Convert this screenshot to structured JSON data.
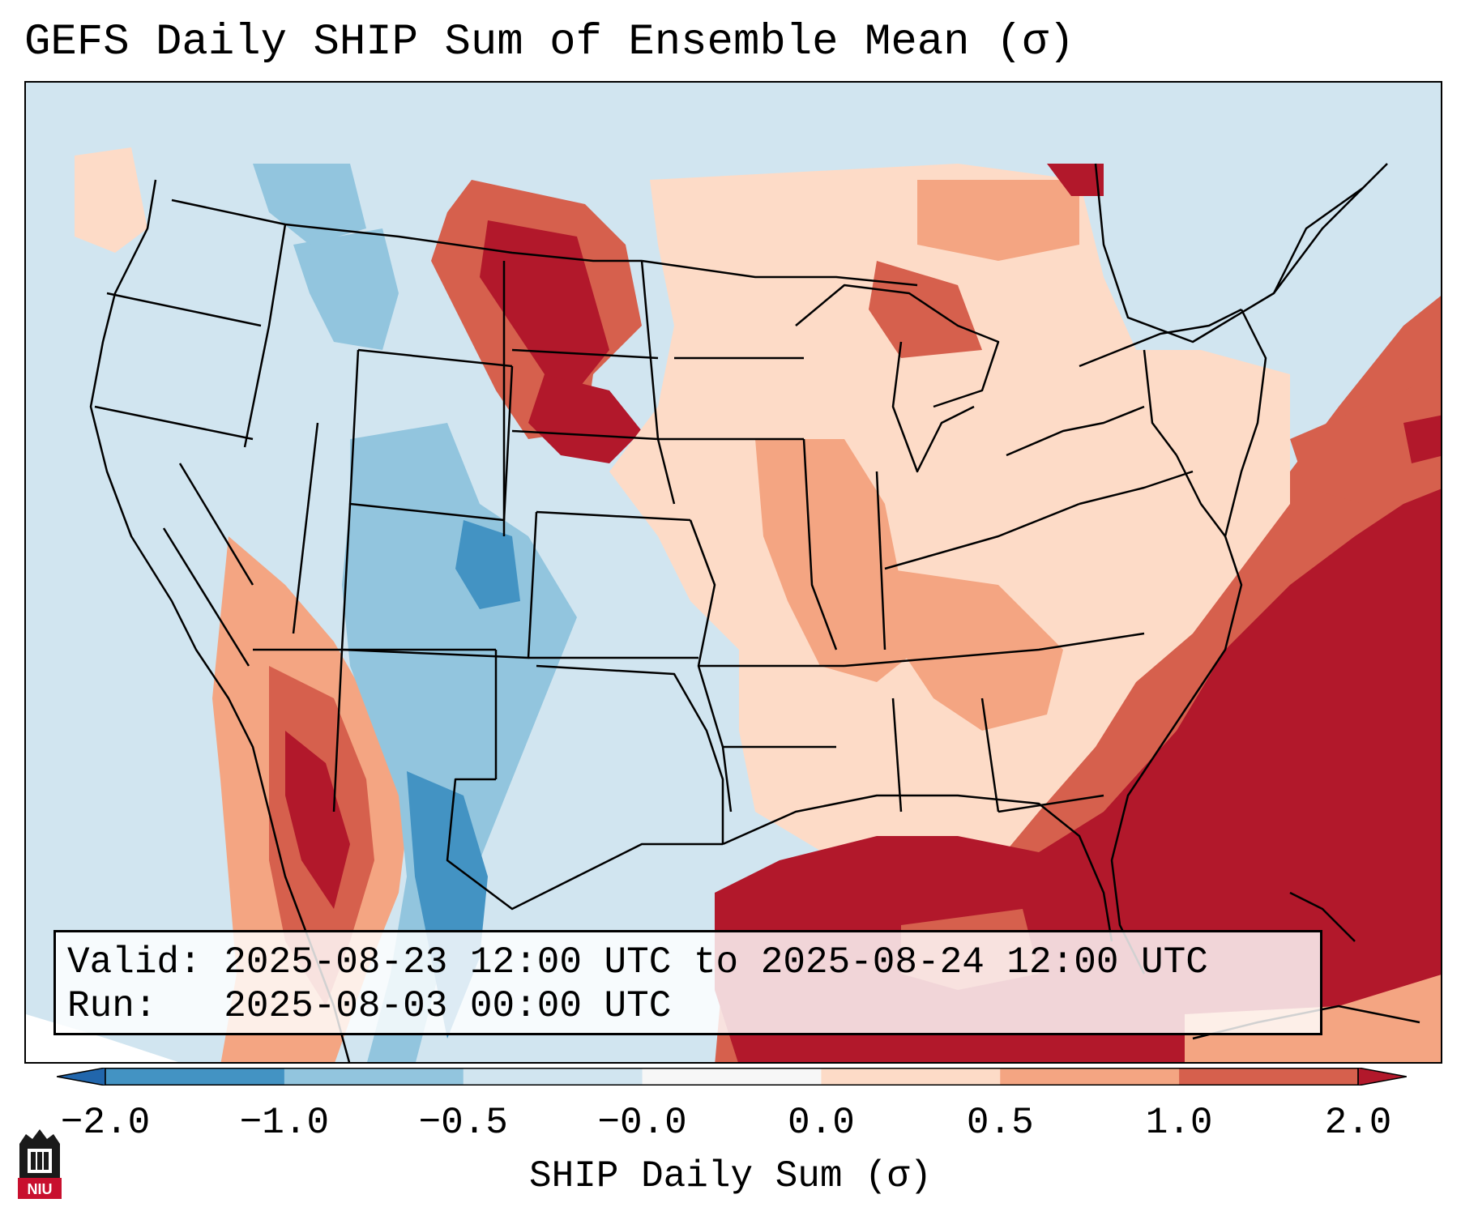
{
  "title": "GEFS Daily SHIP Sum of Ensemble Mean (σ)",
  "info": {
    "valid_label": "Valid:",
    "valid_value": "2025-08-23 12:00 UTC to 2025-08-24 12:00 UTC",
    "run_label": "Run:",
    "run_value": "2025-08-03 00:00 UTC"
  },
  "colorbar": {
    "label": "SHIP Daily Sum (σ)",
    "ticks": [
      "−2.0",
      "−1.0",
      "−0.5",
      "−0.0",
      "0.0",
      "0.5",
      "1.0",
      "2.0"
    ],
    "colors": [
      "#4393c3",
      "#92c5de",
      "#d1e5f0",
      "#f7f7f7",
      "#fddbc7",
      "#f4a582",
      "#d6604d"
    ],
    "extend_low": "#2166ac",
    "extend_high": "#b2182b"
  },
  "map_colors": {
    "ocean_neutral": "#d1e5f0",
    "strong_positive": "#b2182b",
    "positive": "#d6604d",
    "weak_positive": "#f4a582",
    "slight_positive": "#fddbc7",
    "slight_negative": "#92c5de",
    "negative": "#4393c3",
    "lines": "#000000"
  },
  "logo": {
    "text": "NIU"
  }
}
